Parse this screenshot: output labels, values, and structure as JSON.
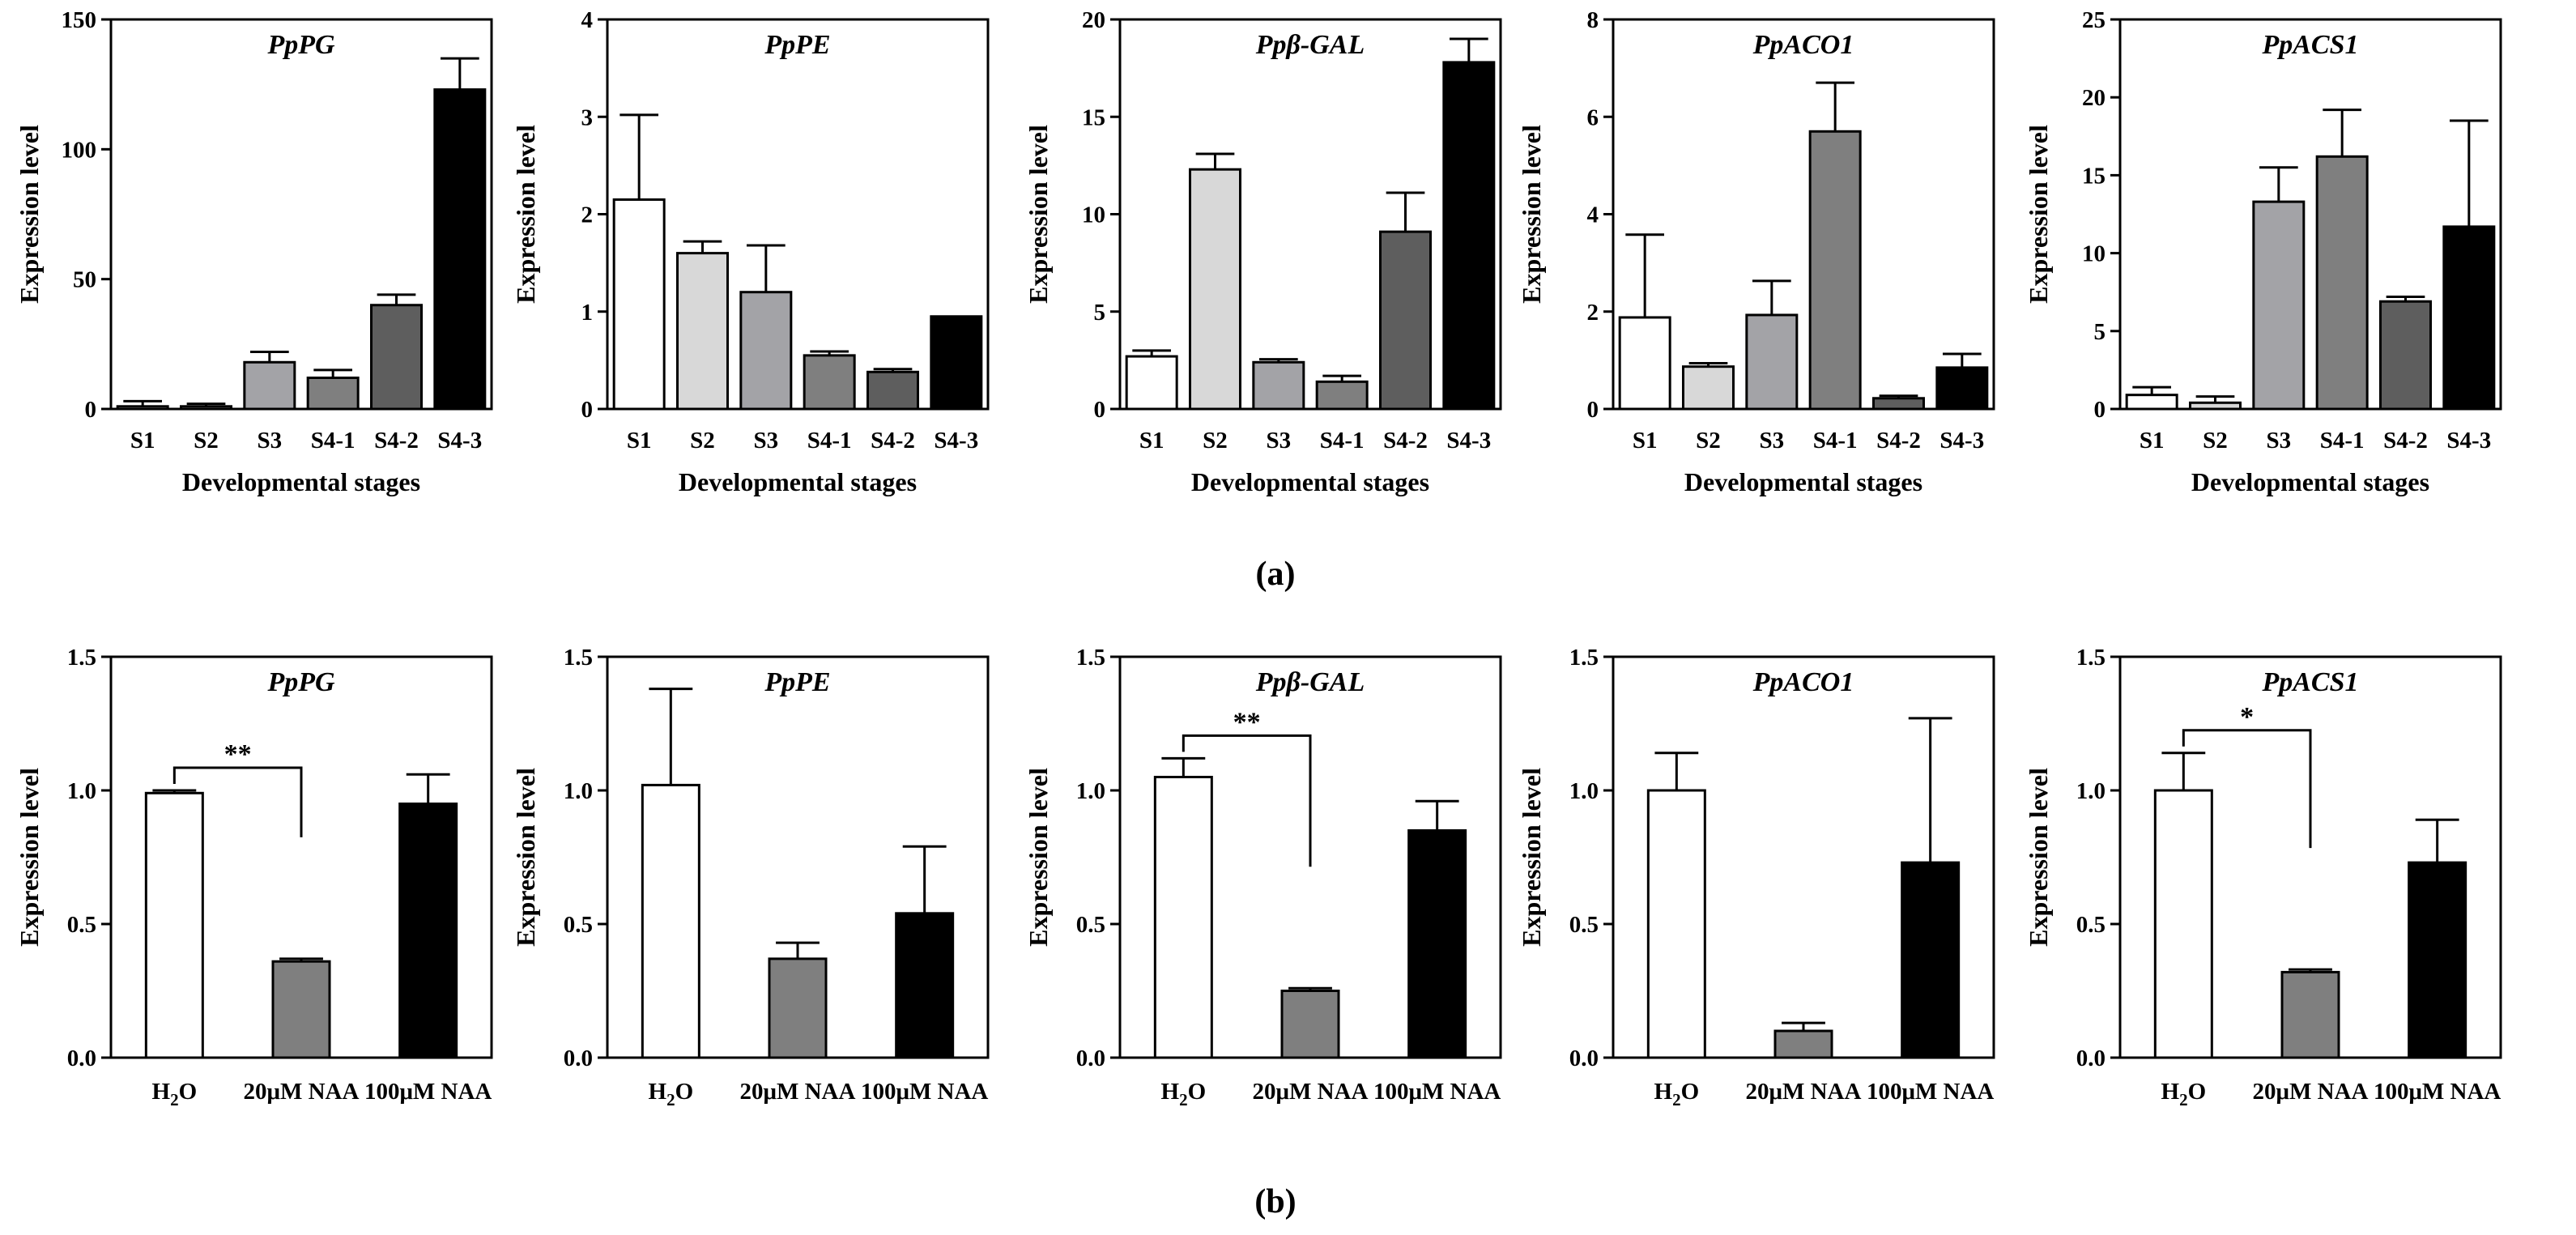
{
  "figure": {
    "label_a": "(a)",
    "label_b": "(b)"
  },
  "colors": {
    "white": "#ffffff",
    "lightgray": "#d8d8d8",
    "midgray": "#a3a3a7",
    "gray": "#7f7f7f",
    "darkgray": "#5e5e5e",
    "black": "#000000"
  },
  "chart_data": [
    {
      "type": "bar",
      "row": "a",
      "title": "PpPG",
      "xlabel": "Developmental stages",
      "ylabel": "Expression level",
      "categories": [
        "S1",
        "S2",
        "S3",
        "S4-1",
        "S4-2",
        "S4-3"
      ],
      "values": [
        1,
        1,
        18,
        12,
        40,
        123
      ],
      "errors": [
        2,
        1,
        4,
        3,
        4,
        12
      ],
      "fills": [
        "white",
        "lightgray",
        "midgray",
        "gray",
        "darkgray",
        "black"
      ],
      "ylim": [
        0,
        150
      ],
      "yticks": [
        0,
        50,
        100,
        150
      ]
    },
    {
      "type": "bar",
      "row": "a",
      "title": "PpPE",
      "xlabel": "Developmental stages",
      "ylabel": "Expression level",
      "categories": [
        "S1",
        "S2",
        "S3",
        "S4-1",
        "S4-2",
        "S4-3"
      ],
      "values": [
        2.15,
        1.6,
        1.2,
        0.55,
        0.38,
        0.95
      ],
      "errors": [
        0.87,
        0.12,
        0.48,
        0.04,
        0.03,
        0
      ],
      "fills": [
        "white",
        "lightgray",
        "midgray",
        "gray",
        "darkgray",
        "black"
      ],
      "ylim": [
        0,
        4
      ],
      "yticks": [
        0,
        1,
        2,
        3,
        4
      ]
    },
    {
      "type": "bar",
      "row": "a",
      "title": "Ppβ-GAL",
      "xlabel": "Developmental stages",
      "ylabel": "Expression level",
      "categories": [
        "S1",
        "S2",
        "S3",
        "S4-1",
        "S4-2",
        "S4-3"
      ],
      "values": [
        2.7,
        12.3,
        2.4,
        1.4,
        9.1,
        17.8
      ],
      "errors": [
        0.3,
        0.8,
        0.15,
        0.3,
        2.0,
        1.2
      ],
      "fills": [
        "white",
        "lightgray",
        "midgray",
        "gray",
        "darkgray",
        "black"
      ],
      "ylim": [
        0,
        20
      ],
      "yticks": [
        0,
        5,
        10,
        15,
        20
      ]
    },
    {
      "type": "bar",
      "row": "a",
      "title": "PpACO1",
      "xlabel": "Developmental stages",
      "ylabel": "Expression level",
      "categories": [
        "S1",
        "S2",
        "S3",
        "S4-1",
        "S4-2",
        "S4-3"
      ],
      "values": [
        1.88,
        0.87,
        1.93,
        5.7,
        0.22,
        0.85
      ],
      "errors": [
        1.7,
        0.07,
        0.7,
        1.0,
        0.05,
        0.28
      ],
      "fills": [
        "white",
        "lightgray",
        "midgray",
        "gray",
        "darkgray",
        "black"
      ],
      "ylim": [
        0,
        8
      ],
      "yticks": [
        0,
        2,
        4,
        6,
        8
      ]
    },
    {
      "type": "bar",
      "row": "a",
      "title": "PpACS1",
      "xlabel": "Developmental stages",
      "ylabel": "Expression level",
      "categories": [
        "S1",
        "S2",
        "S3",
        "S4-1",
        "S4-2",
        "S4-3"
      ],
      "values": [
        0.9,
        0.4,
        13.3,
        16.2,
        6.9,
        11.7
      ],
      "errors": [
        0.5,
        0.4,
        2.2,
        3.0,
        0.3,
        6.8
      ],
      "fills": [
        "white",
        "lightgray",
        "midgray",
        "gray",
        "darkgray",
        "black"
      ],
      "ylim": [
        0,
        25
      ],
      "yticks": [
        0,
        5,
        10,
        15,
        20,
        25
      ]
    },
    {
      "type": "bar",
      "row": "b",
      "title": "PpPG",
      "xlabel": "",
      "ylabel": "Expression level",
      "categories": [
        "H2O",
        "20μM NAA",
        "100μM NAA"
      ],
      "values": [
        0.99,
        0.36,
        0.95
      ],
      "errors": [
        0.01,
        0.01,
        0.11
      ],
      "fills": [
        "white",
        "gray",
        "black"
      ],
      "ylim": [
        0,
        1.5
      ],
      "yticks": [
        0.0,
        0.5,
        1.0,
        1.5
      ],
      "annotation": {
        "text": "**",
        "from": 0,
        "to": 1
      }
    },
    {
      "type": "bar",
      "row": "b",
      "title": "PpPE",
      "xlabel": "",
      "ylabel": "Expression level",
      "categories": [
        "H2O",
        "20μM NAA",
        "100μM NAA"
      ],
      "values": [
        1.02,
        0.37,
        0.54
      ],
      "errors": [
        0.36,
        0.06,
        0.25
      ],
      "fills": [
        "white",
        "gray",
        "black"
      ],
      "ylim": [
        0,
        1.5
      ],
      "yticks": [
        0.0,
        0.5,
        1.0,
        1.5
      ]
    },
    {
      "type": "bar",
      "row": "b",
      "title": "Ppβ-GAL",
      "xlabel": "",
      "ylabel": "Expression level",
      "categories": [
        "H2O",
        "20μM NAA",
        "100μM NAA"
      ],
      "values": [
        1.05,
        0.25,
        0.85
      ],
      "errors": [
        0.07,
        0.01,
        0.11
      ],
      "fills": [
        "white",
        "gray",
        "black"
      ],
      "ylim": [
        0,
        1.5
      ],
      "yticks": [
        0.0,
        0.5,
        1.0,
        1.5
      ],
      "annotation": {
        "text": "**",
        "from": 0,
        "to": 1
      }
    },
    {
      "type": "bar",
      "row": "b",
      "title": "PpACO1",
      "xlabel": "",
      "ylabel": "Expression level",
      "categories": [
        "H2O",
        "20μM NAA",
        "100μM NAA"
      ],
      "values": [
        1.0,
        0.1,
        0.73
      ],
      "errors": [
        0.14,
        0.03,
        0.54
      ],
      "fills": [
        "white",
        "gray",
        "black"
      ],
      "ylim": [
        0,
        1.5
      ],
      "yticks": [
        0.0,
        0.5,
        1.0,
        1.5
      ]
    },
    {
      "type": "bar",
      "row": "b",
      "title": "PpACS1",
      "xlabel": "",
      "ylabel": "Expression level",
      "categories": [
        "H2O",
        "20μM NAA",
        "100μM NAA"
      ],
      "values": [
        1.0,
        0.32,
        0.73
      ],
      "errors": [
        0.14,
        0.01,
        0.16
      ],
      "fills": [
        "white",
        "gray",
        "black"
      ],
      "ylim": [
        0,
        1.5
      ],
      "yticks": [
        0.0,
        0.5,
        1.0,
        1.5
      ],
      "annotation": {
        "text": "*",
        "from": 0,
        "to": 1
      }
    }
  ]
}
